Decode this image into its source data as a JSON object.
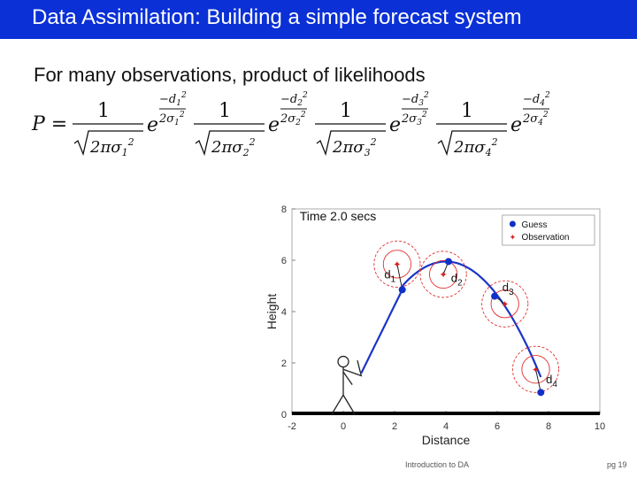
{
  "slide": {
    "title": "Data Assimilation: Building a simple forecast system",
    "subtitle": "For many observations, product of likelihoods",
    "footer_left": "Introduction to DA",
    "footer_right": "pg 19",
    "title_bar_color": "#0a30d6"
  },
  "formula": {
    "lhs": "P =",
    "terms": [
      {
        "numerator": "1",
        "denom_prefix": "2πσ",
        "sub": "1",
        "sup": "2",
        "exp_num": "−d",
        "exp_num_sub": "1",
        "exp_den": "2σ",
        "exp_den_sub": "1"
      },
      {
        "numerator": "1",
        "denom_prefix": "2πσ",
        "sub": "2",
        "sup": "2",
        "exp_num": "−d",
        "exp_num_sub": "2",
        "exp_den": "2σ",
        "exp_den_sub": "2"
      },
      {
        "numerator": "1",
        "denom_prefix": "2πσ",
        "sub": "3",
        "sup": "2",
        "exp_num": "−d",
        "exp_num_sub": "3",
        "exp_den": "2σ",
        "exp_den_sub": "3"
      },
      {
        "numerator": "1",
        "denom_prefix": "2πσ",
        "sub": "4",
        "sup": "2",
        "exp_num": "−d",
        "exp_num_sub": "4",
        "exp_den": "2σ",
        "exp_den_sub": "4"
      }
    ],
    "exp_base": "e"
  },
  "chart_data": {
    "type": "scatter",
    "annotation": "Time 2.0 secs",
    "xlabel": "Distance",
    "ylabel": "Height",
    "xlim": [
      -2,
      10
    ],
    "ylim": [
      0,
      8
    ],
    "xticks": [
      "-2",
      "0",
      "2",
      "4",
      "6",
      "8",
      "10"
    ],
    "yticks": [
      "0",
      "2",
      "4",
      "6",
      "8"
    ],
    "legend": {
      "placement": "top-right",
      "entries": [
        "Guess",
        "Observation"
      ]
    },
    "colors": {
      "guess": "#1030c8",
      "observation": "#d02020",
      "circle": "#e03030",
      "curve": "#1a35c8"
    },
    "series": [
      {
        "name": "Guess",
        "points": [
          [
            2.3,
            4.85
          ],
          [
            4.1,
            5.95
          ],
          [
            5.9,
            4.6
          ],
          [
            7.7,
            0.85
          ]
        ]
      },
      {
        "name": "Observation",
        "points": [
          [
            2.1,
            5.85
          ],
          [
            3.9,
            5.45
          ],
          [
            6.3,
            4.3
          ],
          [
            7.5,
            1.75
          ]
        ]
      }
    ],
    "distance_labels": [
      {
        "text": "d",
        "sub": "1",
        "x": 1.6,
        "y": 5.3
      },
      {
        "text": "d",
        "sub": "2",
        "x": 4.2,
        "y": 5.15
      },
      {
        "text": "d",
        "sub": "3",
        "x": 6.2,
        "y": 4.8
      },
      {
        "text": "d",
        "sub": "4",
        "x": 7.9,
        "y": 1.2
      }
    ],
    "uncertainty_radius": 0.9,
    "trajectory": {
      "start_x": 0.7,
      "apex_x": 4.0,
      "apex_y": 5.95,
      "end_x": 7.7
    }
  }
}
